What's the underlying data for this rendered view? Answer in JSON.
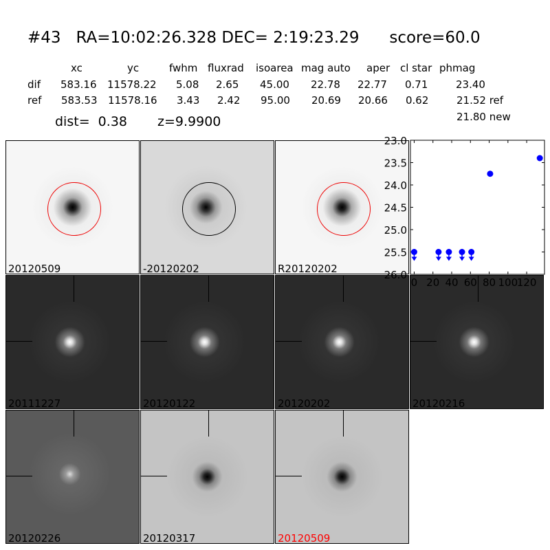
{
  "header": {
    "title": "#43   RA=10:02:26.328 DEC= 2:19:23.29      score=60.0"
  },
  "table": {
    "columns": [
      "xc",
      "yc",
      "fwhm",
      "fluxrad",
      "isoarea",
      "mag auto",
      "aper",
      "cl star",
      "phmag"
    ],
    "rows": [
      {
        "label": "dif",
        "values": [
          "583.16",
          "11578.22",
          "5.08",
          "2.65",
          "45.00",
          "22.78",
          "22.77",
          "0.71",
          "23.40"
        ]
      },
      {
        "label": "ref",
        "values": [
          "583.53",
          "11578.16",
          "3.43",
          "2.42",
          "95.00",
          "20.69",
          "20.66",
          "0.62",
          "21.52 ref"
        ]
      }
    ],
    "extra_phmag": "21.80 new",
    "dist": "dist=  0.38",
    "z": "z=9.9900"
  },
  "stamps": [
    {
      "label": "20120509",
      "style": "light",
      "circle": "red"
    },
    {
      "label": "-20120202",
      "style": "noisy-light",
      "circle": "black"
    },
    {
      "label": "R20120202",
      "style": "light",
      "circle": "red"
    },
    {
      "label": "20111227",
      "style": "dark"
    },
    {
      "label": "20120122",
      "style": "dark"
    },
    {
      "label": "20120202",
      "style": "dark"
    },
    {
      "label": "20120216",
      "style": "dark"
    },
    {
      "label": "20120226",
      "style": "dark-noisy"
    },
    {
      "label": "20120317",
      "style": "inverted"
    },
    {
      "label": "20120509",
      "style": "inverted",
      "label_color": "#ff0000"
    }
  ],
  "chart_data": {
    "type": "scatter",
    "xlim": [
      -4,
      139
    ],
    "ylim": [
      26.0,
      23.0
    ],
    "y_inverted": true,
    "xticks": [
      "0",
      "20",
      "40",
      "60",
      "80",
      "100",
      "120"
    ],
    "yticks": [
      "23.0",
      "23.5",
      "24.0",
      "24.5",
      "25.0",
      "25.5",
      "26.0"
    ],
    "color": "#0000ff",
    "points": [
      {
        "x": 0,
        "y": 25.5,
        "upper_limit": true
      },
      {
        "x": 26,
        "y": 25.5,
        "upper_limit": true
      },
      {
        "x": 37,
        "y": 25.5,
        "upper_limit": true
      },
      {
        "x": 51,
        "y": 25.5,
        "upper_limit": true
      },
      {
        "x": 61,
        "y": 25.5,
        "upper_limit": true
      },
      {
        "x": 81,
        "y": 23.75,
        "upper_limit": false
      },
      {
        "x": 134,
        "y": 23.4,
        "upper_limit": false
      }
    ]
  }
}
